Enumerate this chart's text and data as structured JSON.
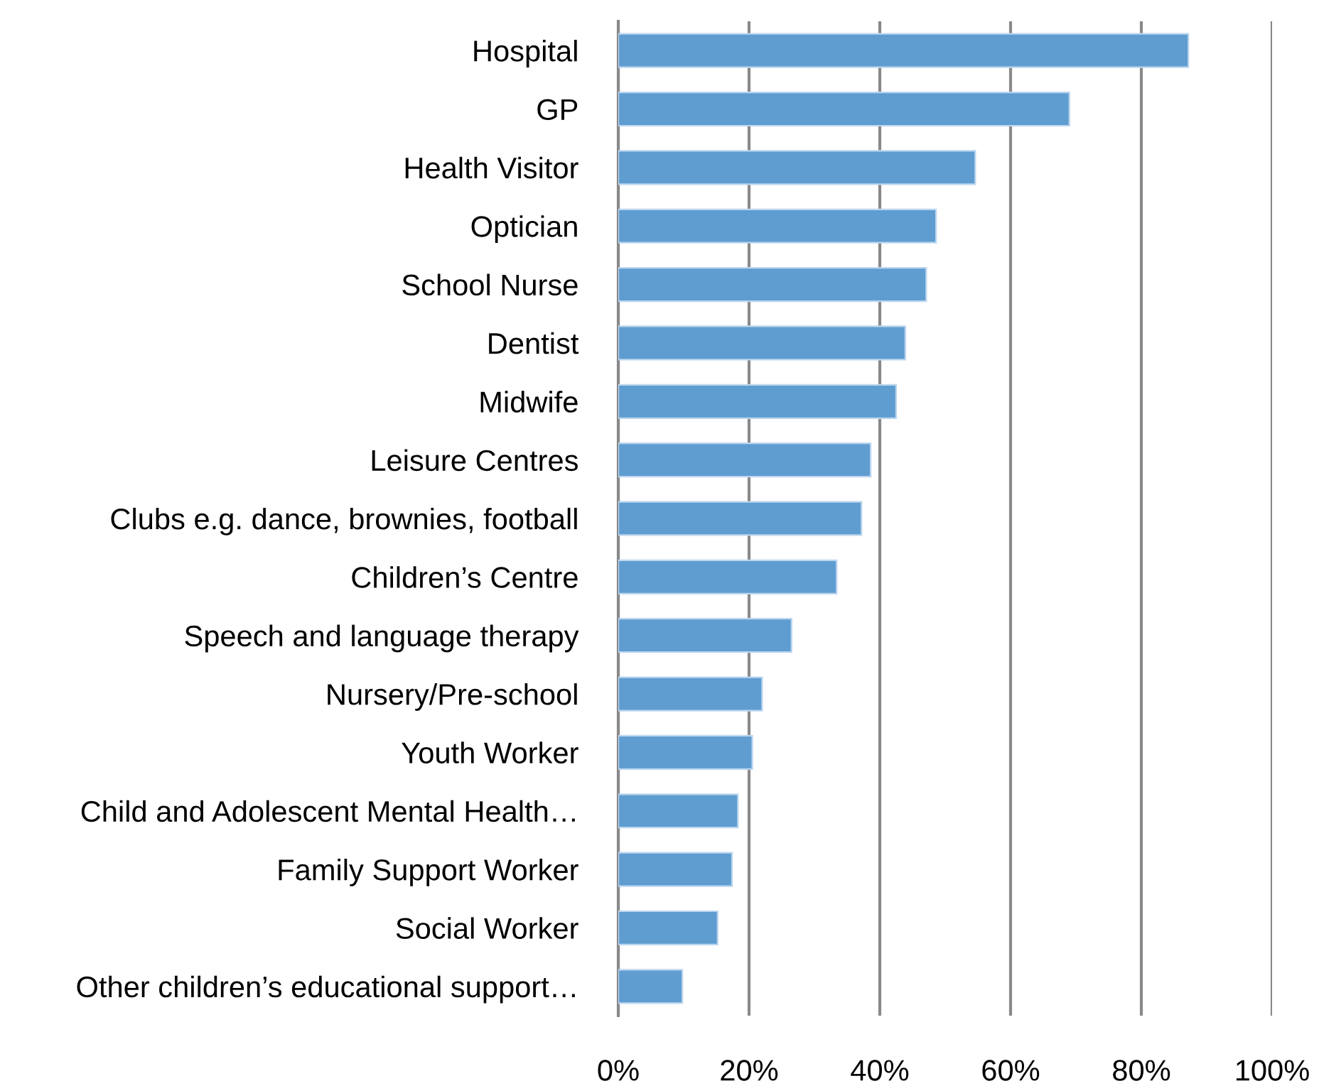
{
  "chart_data": {
    "type": "bar",
    "orientation": "horizontal",
    "categories": [
      "Hospital",
      "GP",
      "Health Visitor",
      "Optician",
      "School Nurse",
      "Dentist",
      "Midwife",
      "Leisure Centres",
      "Clubs e.g. dance, brownies, football",
      "Children’s Centre",
      "Speech and language therapy",
      "Nursery/Pre-school",
      "Youth Worker",
      "Child and Adolescent Mental Health…",
      "Family Support Worker",
      "Social Worker",
      "Other children’s educational support…"
    ],
    "values": [
      87.2,
      69.0,
      54.6,
      48.6,
      47.1,
      43.9,
      42.5,
      38.6,
      37.2,
      33.4,
      26.5,
      22.0,
      20.5,
      18.3,
      17.4,
      15.2,
      9.8
    ],
    "color": "#5f9dd1",
    "xlim": [
      0,
      100
    ],
    "xticks": [
      {
        "value": 0,
        "label": "0%"
      },
      {
        "value": 20,
        "label": "20%"
      },
      {
        "value": 40,
        "label": "40%"
      },
      {
        "value": 60,
        "label": "60%"
      },
      {
        "value": 80,
        "label": "80%"
      },
      {
        "value": 100,
        "label": "100%"
      }
    ],
    "grid": "x"
  }
}
